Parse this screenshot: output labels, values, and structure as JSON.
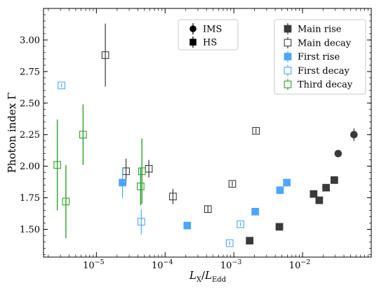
{
  "chart_data": {
    "type": "scatter",
    "xlabel": "L_X/L_Edd",
    "ylabel": "Photon index Γ",
    "xscale": "log",
    "xlim": [
      1.7e-06,
      0.1
    ],
    "ylim": [
      1.28,
      3.25
    ],
    "y_ticks": [
      "1.50",
      "1.75",
      "2.00",
      "2.25",
      "2.50",
      "2.75",
      "3.00"
    ],
    "x_ticks": [
      {
        "value": 1e-05,
        "base": "10",
        "exp": "−5"
      },
      {
        "value": 0.0001,
        "base": "10",
        "exp": "−4"
      },
      {
        "value": 0.001,
        "base": "10",
        "exp": "−3"
      },
      {
        "value": 0.01,
        "base": "10",
        "exp": "−2"
      }
    ],
    "grid": false,
    "state_legend": {
      "placement": "top-center",
      "entries": [
        {
          "label": "IMS",
          "marker": "circle"
        },
        {
          "label": "HS",
          "marker": "square"
        }
      ]
    },
    "series": [
      {
        "name": "Main rise",
        "color": "#3a3a3a",
        "filled": true,
        "points": [
          {
            "x": 0.0017,
            "y": 1.41,
            "err": 0.015,
            "marker": "square"
          },
          {
            "x": 0.0046,
            "y": 1.52,
            "err": 0.015,
            "marker": "square"
          },
          {
            "x": 0.0145,
            "y": 1.78,
            "err": 0.015,
            "marker": "square"
          },
          {
            "x": 0.0175,
            "y": 1.73,
            "err": 0.015,
            "marker": "square"
          },
          {
            "x": 0.022,
            "y": 1.83,
            "err": 0.015,
            "marker": "square"
          },
          {
            "x": 0.029,
            "y": 1.89,
            "err": 0.015,
            "marker": "square"
          },
          {
            "x": 0.033,
            "y": 2.1,
            "err": 0.015,
            "marker": "circle"
          },
          {
            "x": 0.056,
            "y": 2.25,
            "err": 0.05,
            "marker": "circle"
          }
        ]
      },
      {
        "name": "Main decay",
        "color": "#3a3a3a",
        "filled": false,
        "points": [
          {
            "x": 1.35e-05,
            "y": 2.88,
            "err": 0.25,
            "marker": "square"
          },
          {
            "x": 2.7e-05,
            "y": 1.96,
            "err": 0.1,
            "marker": "square"
          },
          {
            "x": 5.8e-05,
            "y": 1.98,
            "err": 0.07,
            "marker": "square"
          },
          {
            "x": 0.00013,
            "y": 1.76,
            "err": 0.06,
            "marker": "square"
          },
          {
            "x": 0.00042,
            "y": 1.66,
            "err": 0.03,
            "marker": "square"
          },
          {
            "x": 0.00095,
            "y": 1.86,
            "err": 0.02,
            "marker": "square"
          },
          {
            "x": 0.0021,
            "y": 2.28,
            "err": 0.02,
            "marker": "square"
          }
        ]
      },
      {
        "name": "First rise",
        "color": "#4da6ff",
        "filled": true,
        "points": [
          {
            "x": 2.4e-05,
            "y": 1.87,
            "err": 0.12,
            "marker": "square"
          },
          {
            "x": 0.00021,
            "y": 1.53,
            "err": 0.015,
            "marker": "square"
          },
          {
            "x": 0.00205,
            "y": 1.64,
            "err": 0.015,
            "marker": "square"
          },
          {
            "x": 0.0047,
            "y": 1.81,
            "err": 0.015,
            "marker": "square"
          },
          {
            "x": 0.0059,
            "y": 1.87,
            "err": 0.015,
            "marker": "square"
          }
        ]
      },
      {
        "name": "First decay",
        "color": "#4da6ff",
        "filled": false,
        "points": [
          {
            "x": 3.1e-06,
            "y": 2.64,
            "err": 0.015,
            "marker": "square"
          },
          {
            "x": 4.5e-05,
            "y": 1.56,
            "err": 0.1,
            "marker": "square"
          },
          {
            "x": 0.00087,
            "y": 1.39,
            "err": 0.015,
            "marker": "square"
          },
          {
            "x": 0.00125,
            "y": 1.54,
            "err": 0.015,
            "marker": "square"
          }
        ]
      },
      {
        "name": "Third decay",
        "color": "#2ca02c",
        "filled": false,
        "points": [
          {
            "x": 2.7e-06,
            "y": 2.01,
            "err": 0.36,
            "marker": "square"
          },
          {
            "x": 3.6e-06,
            "y": 1.72,
            "err": 0.29,
            "marker": "square"
          },
          {
            "x": 6.4e-06,
            "y": 2.25,
            "err": 0.24,
            "marker": "square"
          },
          {
            "x": 4.6e-05,
            "y": 1.96,
            "err": 0.26,
            "marker": "square"
          },
          {
            "x": 4.4e-05,
            "y": 1.84,
            "err": 0.15,
            "marker": "square"
          }
        ]
      }
    ]
  }
}
